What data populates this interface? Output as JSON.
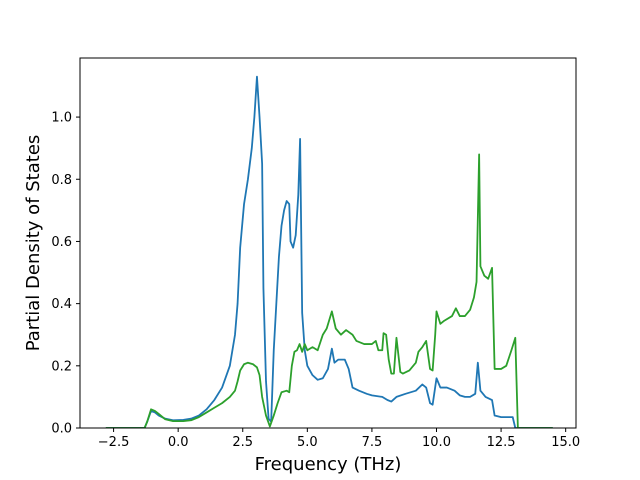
{
  "chart_data": {
    "type": "line",
    "title": "",
    "xlabel": "Frequency (THz)",
    "ylabel": "Partial Density of States",
    "xlim": [
      -3.8,
      15.4
    ],
    "ylim": [
      0.0,
      1.19
    ],
    "grid": false,
    "xticks": [
      {
        "value": -2.5,
        "label": "−2.5"
      },
      {
        "value": 0.0,
        "label": "0.0"
      },
      {
        "value": 2.5,
        "label": "2.5"
      },
      {
        "value": 5.0,
        "label": "5.0"
      },
      {
        "value": 7.5,
        "label": "7.5"
      },
      {
        "value": 10.0,
        "label": "10.0"
      },
      {
        "value": 12.5,
        "label": "12.5"
      },
      {
        "value": 15.0,
        "label": "15.0"
      }
    ],
    "yticks": [
      {
        "value": 0.0,
        "label": "0.0"
      },
      {
        "value": 0.2,
        "label": "0.2"
      },
      {
        "value": 0.4,
        "label": "0.4"
      },
      {
        "value": 0.6,
        "label": "0.6"
      },
      {
        "value": 0.8,
        "label": "0.8"
      },
      {
        "value": 1.0,
        "label": "1.0"
      }
    ],
    "series": [
      {
        "color": "#1f77b4",
        "points": [
          [
            -2.8,
            0.0
          ],
          [
            -1.3,
            0.0
          ],
          [
            -1.2,
            0.02
          ],
          [
            -1.05,
            0.055
          ],
          [
            -0.9,
            0.05
          ],
          [
            -0.75,
            0.04
          ],
          [
            -0.5,
            0.03
          ],
          [
            -0.2,
            0.025
          ],
          [
            0.2,
            0.026
          ],
          [
            0.5,
            0.03
          ],
          [
            0.8,
            0.04
          ],
          [
            1.1,
            0.06
          ],
          [
            1.4,
            0.09
          ],
          [
            1.7,
            0.13
          ],
          [
            2.0,
            0.2
          ],
          [
            2.2,
            0.3
          ],
          [
            2.3,
            0.4
          ],
          [
            2.4,
            0.58
          ],
          [
            2.55,
            0.72
          ],
          [
            2.7,
            0.8
          ],
          [
            2.85,
            0.9
          ],
          [
            2.95,
            1.0
          ],
          [
            3.05,
            1.13
          ],
          [
            3.15,
            1.0
          ],
          [
            3.25,
            0.85
          ],
          [
            3.3,
            0.45
          ],
          [
            3.4,
            0.15
          ],
          [
            3.5,
            0.03
          ],
          [
            3.6,
            0.02
          ],
          [
            3.7,
            0.25
          ],
          [
            3.8,
            0.4
          ],
          [
            3.9,
            0.55
          ],
          [
            4.0,
            0.65
          ],
          [
            4.1,
            0.7
          ],
          [
            4.2,
            0.73
          ],
          [
            4.3,
            0.72
          ],
          [
            4.35,
            0.6
          ],
          [
            4.45,
            0.58
          ],
          [
            4.55,
            0.62
          ],
          [
            4.65,
            0.75
          ],
          [
            4.72,
            0.93
          ],
          [
            4.8,
            0.37
          ],
          [
            4.9,
            0.25
          ],
          [
            5.0,
            0.2
          ],
          [
            5.2,
            0.17
          ],
          [
            5.4,
            0.155
          ],
          [
            5.6,
            0.16
          ],
          [
            5.8,
            0.19
          ],
          [
            5.95,
            0.255
          ],
          [
            6.05,
            0.21
          ],
          [
            6.2,
            0.22
          ],
          [
            6.45,
            0.22
          ],
          [
            6.6,
            0.19
          ],
          [
            6.75,
            0.13
          ],
          [
            7.0,
            0.12
          ],
          [
            7.3,
            0.11
          ],
          [
            7.5,
            0.105
          ],
          [
            7.9,
            0.1
          ],
          [
            8.1,
            0.09
          ],
          [
            8.25,
            0.085
          ],
          [
            8.45,
            0.1
          ],
          [
            8.8,
            0.11
          ],
          [
            9.2,
            0.12
          ],
          [
            9.45,
            0.14
          ],
          [
            9.6,
            0.13
          ],
          [
            9.75,
            0.08
          ],
          [
            9.85,
            0.075
          ],
          [
            10.0,
            0.16
          ],
          [
            10.15,
            0.13
          ],
          [
            10.4,
            0.13
          ],
          [
            10.7,
            0.12
          ],
          [
            10.9,
            0.105
          ],
          [
            11.1,
            0.1
          ],
          [
            11.3,
            0.1
          ],
          [
            11.5,
            0.11
          ],
          [
            11.6,
            0.21
          ],
          [
            11.7,
            0.12
          ],
          [
            11.9,
            0.1
          ],
          [
            12.15,
            0.09
          ],
          [
            12.25,
            0.04
          ],
          [
            12.5,
            0.035
          ],
          [
            12.8,
            0.035
          ],
          [
            12.95,
            0.035
          ],
          [
            13.05,
            0.0
          ],
          [
            14.5,
            0.0
          ]
        ]
      },
      {
        "color": "#2ca02c",
        "points": [
          [
            -2.8,
            0.0
          ],
          [
            -1.3,
            0.0
          ],
          [
            -1.2,
            0.02
          ],
          [
            -1.05,
            0.06
          ],
          [
            -0.9,
            0.055
          ],
          [
            -0.75,
            0.045
          ],
          [
            -0.5,
            0.028
          ],
          [
            -0.2,
            0.022
          ],
          [
            0.2,
            0.022
          ],
          [
            0.5,
            0.025
          ],
          [
            0.8,
            0.035
          ],
          [
            1.1,
            0.05
          ],
          [
            1.4,
            0.065
          ],
          [
            1.7,
            0.08
          ],
          [
            2.0,
            0.1
          ],
          [
            2.2,
            0.12
          ],
          [
            2.3,
            0.15
          ],
          [
            2.4,
            0.185
          ],
          [
            2.55,
            0.205
          ],
          [
            2.7,
            0.21
          ],
          [
            2.9,
            0.205
          ],
          [
            3.05,
            0.195
          ],
          [
            3.15,
            0.17
          ],
          [
            3.25,
            0.1
          ],
          [
            3.4,
            0.04
          ],
          [
            3.55,
            0.005
          ],
          [
            3.7,
            0.04
          ],
          [
            3.85,
            0.08
          ],
          [
            4.0,
            0.115
          ],
          [
            4.2,
            0.12
          ],
          [
            4.3,
            0.115
          ],
          [
            4.4,
            0.2
          ],
          [
            4.5,
            0.245
          ],
          [
            4.6,
            0.25
          ],
          [
            4.7,
            0.27
          ],
          [
            4.8,
            0.245
          ],
          [
            4.9,
            0.27
          ],
          [
            5.0,
            0.25
          ],
          [
            5.2,
            0.26
          ],
          [
            5.4,
            0.25
          ],
          [
            5.6,
            0.3
          ],
          [
            5.75,
            0.32
          ],
          [
            5.95,
            0.375
          ],
          [
            6.1,
            0.32
          ],
          [
            6.3,
            0.3
          ],
          [
            6.5,
            0.315
          ],
          [
            6.75,
            0.3
          ],
          [
            6.9,
            0.28
          ],
          [
            7.2,
            0.27
          ],
          [
            7.5,
            0.27
          ],
          [
            7.65,
            0.28
          ],
          [
            7.75,
            0.25
          ],
          [
            7.9,
            0.25
          ],
          [
            7.95,
            0.305
          ],
          [
            8.05,
            0.3
          ],
          [
            8.15,
            0.22
          ],
          [
            8.25,
            0.175
          ],
          [
            8.35,
            0.175
          ],
          [
            8.45,
            0.29
          ],
          [
            8.6,
            0.18
          ],
          [
            8.7,
            0.175
          ],
          [
            8.95,
            0.185
          ],
          [
            9.2,
            0.21
          ],
          [
            9.3,
            0.245
          ],
          [
            9.45,
            0.26
          ],
          [
            9.6,
            0.28
          ],
          [
            9.75,
            0.19
          ],
          [
            9.85,
            0.185
          ],
          [
            9.95,
            0.3
          ],
          [
            10.0,
            0.375
          ],
          [
            10.15,
            0.335
          ],
          [
            10.3,
            0.345
          ],
          [
            10.6,
            0.36
          ],
          [
            10.75,
            0.385
          ],
          [
            10.9,
            0.36
          ],
          [
            11.1,
            0.36
          ],
          [
            11.3,
            0.38
          ],
          [
            11.45,
            0.42
          ],
          [
            11.55,
            0.47
          ],
          [
            11.65,
            0.88
          ],
          [
            11.7,
            0.52
          ],
          [
            11.85,
            0.49
          ],
          [
            12.0,
            0.48
          ],
          [
            12.15,
            0.515
          ],
          [
            12.25,
            0.19
          ],
          [
            12.5,
            0.19
          ],
          [
            12.7,
            0.2
          ],
          [
            12.9,
            0.25
          ],
          [
            13.05,
            0.29
          ],
          [
            13.15,
            0.0
          ],
          [
            14.5,
            0.0
          ]
        ]
      }
    ]
  }
}
